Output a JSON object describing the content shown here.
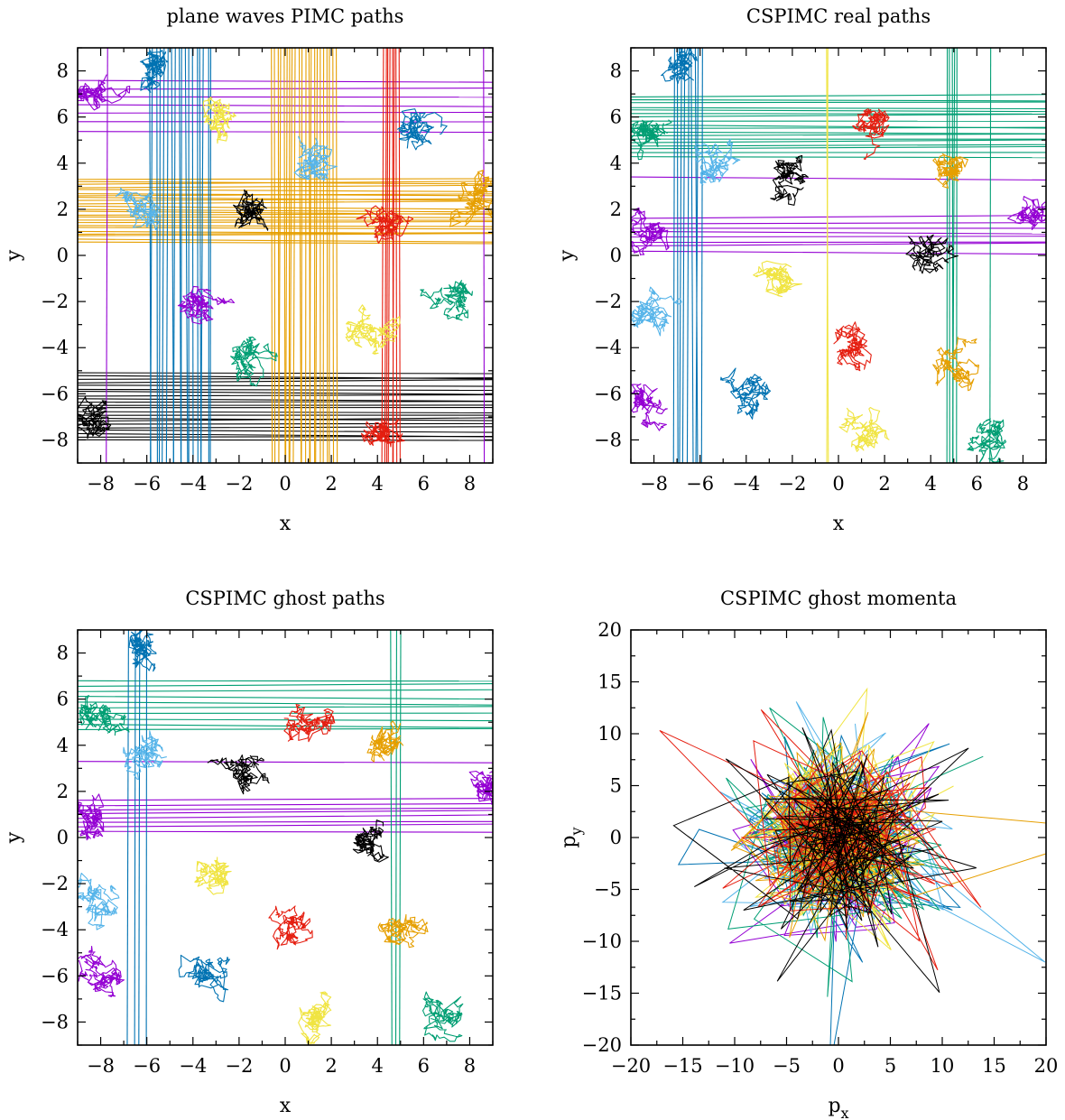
{
  "palette": [
    "#9400d3",
    "#0072b2",
    "#56b4e9",
    "#009e73",
    "#f0e442",
    "#e69f00",
    "#e51e10",
    "#000000"
  ],
  "chart_data": [
    {
      "type": "line",
      "title": "plane waves PIMC paths",
      "xlabel": "x",
      "ylabel": "y",
      "xlim": [
        -9,
        9
      ],
      "ylim": [
        -9,
        9
      ],
      "xticks": [
        "−8",
        "−6",
        "−4",
        "−2",
        "0",
        "2",
        "4",
        "6",
        "8"
      ],
      "yticks": [
        "−8",
        "−6",
        "−4",
        "−2",
        "0",
        "2",
        "4",
        "6",
        "8"
      ],
      "grid": false,
      "seed": 11,
      "clusters": [
        {
          "color": "#0072b2",
          "cx": -5.6,
          "cy": 8.2,
          "r": 1.0
        },
        {
          "color": "#56b4e9",
          "cx": -6.2,
          "cy": 2.2,
          "r": 1.3
        },
        {
          "color": "#56b4e9",
          "cx": 1.0,
          "cy": 4.3,
          "r": 0.9
        },
        {
          "color": "#9400d3",
          "cx": -4.0,
          "cy": -1.8,
          "r": 0.9
        },
        {
          "color": "#9400d3",
          "cx": -8.2,
          "cy": 7.0,
          "r": 0.8
        },
        {
          "color": "#f0e442",
          "cx": -3.0,
          "cy": 5.7,
          "r": 0.8
        },
        {
          "color": "#f0e442",
          "cx": 3.8,
          "cy": -3.4,
          "r": 0.9
        },
        {
          "color": "#009e73",
          "cx": 7.6,
          "cy": -2.1,
          "r": 1.0
        },
        {
          "color": "#009e73",
          "cx": -1.6,
          "cy": -4.6,
          "r": 1.0
        },
        {
          "color": "#000000",
          "cx": -1.5,
          "cy": 1.6,
          "r": 0.9
        },
        {
          "color": "#000000",
          "cx": -8.2,
          "cy": -6.9,
          "r": 0.8
        },
        {
          "color": "#e51e10",
          "cx": 4.3,
          "cy": 1.2,
          "r": 0.9
        },
        {
          "color": "#e51e10",
          "cx": 4.3,
          "cy": -7.7,
          "r": 0.9
        },
        {
          "color": "#e69f00",
          "cx": 8.2,
          "cy": 2.2,
          "r": 0.8
        },
        {
          "color": "#0072b2",
          "cx": 5.7,
          "cy": 5.8,
          "r": 0.9
        }
      ],
      "hlines": [
        {
          "color": "#e69f00",
          "from": 0.6,
          "to": 3.3,
          "n": 24
        },
        {
          "color": "#000000",
          "from": -8.0,
          "to": -5.1,
          "n": 22
        },
        {
          "color": "#9400d3",
          "from": 5.4,
          "to": 7.6,
          "n": 7
        }
      ],
      "vlines": [
        {
          "color": "#e69f00",
          "from": -0.6,
          "to": 2.2,
          "n": 22
        },
        {
          "color": "#0072b2",
          "from": -5.9,
          "to": -3.2,
          "n": 18
        },
        {
          "color": "#e51e10",
          "from": 4.3,
          "to": 4.9,
          "n": 8
        },
        {
          "color": "#9400d3",
          "from": -7.7,
          "to": -7.7,
          "n": 1
        },
        {
          "color": "#9400d3",
          "from": 8.6,
          "to": 8.6,
          "n": 1
        }
      ]
    },
    {
      "type": "line",
      "title": "CSPIMC real paths",
      "xlabel": "x",
      "ylabel": "y",
      "xlim": [
        -9,
        9
      ],
      "ylim": [
        -9,
        9
      ],
      "xticks": [
        "−8",
        "−6",
        "−4",
        "−2",
        "0",
        "2",
        "4",
        "6",
        "8"
      ],
      "yticks": [
        "−8",
        "−6",
        "−4",
        "−2",
        "0",
        "2",
        "4",
        "6",
        "8"
      ],
      "grid": false,
      "seed": 23,
      "clusters": [
        {
          "color": "#0072b2",
          "cx": -6.9,
          "cy": 8.1,
          "r": 1.0
        },
        {
          "color": "#009e73",
          "cx": -8.2,
          "cy": 5.2,
          "r": 0.8
        },
        {
          "color": "#56b4e9",
          "cx": -5.6,
          "cy": 3.5,
          "r": 0.9
        },
        {
          "color": "#000000",
          "cx": -2.2,
          "cy": 3.4,
          "r": 1.0
        },
        {
          "color": "#e51e10",
          "cx": 1.4,
          "cy": 5.5,
          "r": 1.0
        },
        {
          "color": "#e69f00",
          "cx": 4.6,
          "cy": 4.2,
          "r": 1.0
        },
        {
          "color": "#9400d3",
          "cx": -8.4,
          "cy": 1.0,
          "r": 0.7
        },
        {
          "color": "#9400d3",
          "cx": 8.3,
          "cy": 1.8,
          "r": 0.8
        },
        {
          "color": "#000000",
          "cx": 4.0,
          "cy": -0.2,
          "r": 1.2
        },
        {
          "color": "#f0e442",
          "cx": -2.6,
          "cy": -1.0,
          "r": 1.1
        },
        {
          "color": "#56b4e9",
          "cx": -8.0,
          "cy": -2.6,
          "r": 0.9
        },
        {
          "color": "#0072b2",
          "cx": -3.5,
          "cy": -5.7,
          "r": 1.0
        },
        {
          "color": "#e51e10",
          "cx": 0.4,
          "cy": -4.2,
          "r": 1.2
        },
        {
          "color": "#e69f00",
          "cx": 4.8,
          "cy": -4.4,
          "r": 1.2
        },
        {
          "color": "#9400d3",
          "cx": -8.0,
          "cy": -6.3,
          "r": 0.9
        },
        {
          "color": "#f0e442",
          "cx": 1.0,
          "cy": -7.9,
          "r": 1.0
        },
        {
          "color": "#009e73",
          "cx": 6.6,
          "cy": -7.8,
          "r": 1.1
        }
      ],
      "hlines": [
        {
          "color": "#009e73",
          "from": 4.3,
          "to": 6.9,
          "n": 18
        },
        {
          "color": "#9400d3",
          "from": 0.2,
          "to": 1.6,
          "n": 8
        },
        {
          "color": "#9400d3",
          "from": 3.4,
          "to": 3.4,
          "n": 1
        }
      ],
      "vlines": [
        {
          "color": "#0072b2",
          "from": -7.1,
          "to": -5.9,
          "n": 9
        },
        {
          "color": "#009e73",
          "from": 4.7,
          "to": 5.1,
          "n": 5
        },
        {
          "color": "#009e73",
          "from": 6.6,
          "to": 6.6,
          "n": 1
        },
        {
          "color": "#f0e442",
          "from": -0.5,
          "to": -0.5,
          "n": 2
        }
      ]
    },
    {
      "type": "line",
      "title": "CSPIMC ghost paths",
      "xlabel": "x",
      "ylabel": "y",
      "xlim": [
        -9,
        9
      ],
      "ylim": [
        -9,
        9
      ],
      "xticks": [
        "−8",
        "−6",
        "−4",
        "−2",
        "0",
        "2",
        "4",
        "6",
        "8"
      ],
      "yticks": [
        "−8",
        "−6",
        "−4",
        "−2",
        "0",
        "2",
        "4",
        "6",
        "8"
      ],
      "grid": false,
      "seed": 37,
      "clusters": [
        {
          "color": "#0072b2",
          "cx": -6.5,
          "cy": 8.1,
          "r": 1.0
        },
        {
          "color": "#009e73",
          "cx": -8.2,
          "cy": 5.2,
          "r": 0.8
        },
        {
          "color": "#56b4e9",
          "cx": -5.6,
          "cy": 3.5,
          "r": 0.9
        },
        {
          "color": "#000000",
          "cx": -2.2,
          "cy": 3.0,
          "r": 1.0
        },
        {
          "color": "#e51e10",
          "cx": 0.8,
          "cy": 5.2,
          "r": 1.0
        },
        {
          "color": "#e69f00",
          "cx": 4.6,
          "cy": 4.2,
          "r": 1.0
        },
        {
          "color": "#9400d3",
          "cx": -8.4,
          "cy": 1.0,
          "r": 0.7
        },
        {
          "color": "#9400d3",
          "cx": 8.3,
          "cy": 2.0,
          "r": 0.8
        },
        {
          "color": "#000000",
          "cx": 3.8,
          "cy": 0.0,
          "r": 1.2
        },
        {
          "color": "#f0e442",
          "cx": -3.0,
          "cy": -1.3,
          "r": 1.1
        },
        {
          "color": "#56b4e9",
          "cx": -8.0,
          "cy": -2.6,
          "r": 0.9
        },
        {
          "color": "#0072b2",
          "cx": -3.6,
          "cy": -5.6,
          "r": 1.0
        },
        {
          "color": "#e51e10",
          "cx": 0.5,
          "cy": -4.0,
          "r": 1.2
        },
        {
          "color": "#e69f00",
          "cx": 4.8,
          "cy": -4.0,
          "r": 1.2
        },
        {
          "color": "#9400d3",
          "cx": -8.0,
          "cy": -6.2,
          "r": 0.9
        },
        {
          "color": "#f0e442",
          "cx": 1.2,
          "cy": -7.8,
          "r": 1.0
        },
        {
          "color": "#009e73",
          "cx": 6.6,
          "cy": -7.8,
          "r": 1.1
        }
      ],
      "hlines": [
        {
          "color": "#009e73",
          "from": 4.7,
          "to": 6.8,
          "n": 10
        },
        {
          "color": "#9400d3",
          "from": 0.3,
          "to": 1.6,
          "n": 8
        },
        {
          "color": "#9400d3",
          "from": 3.3,
          "to": 3.3,
          "n": 1
        }
      ],
      "vlines": [
        {
          "color": "#0072b2",
          "from": -6.8,
          "to": -6.0,
          "n": 4
        },
        {
          "color": "#009e73",
          "from": 4.6,
          "to": 5.0,
          "n": 3
        }
      ]
    },
    {
      "type": "line",
      "title": "CSPIMC ghost momenta",
      "xlabel": "p",
      "xlabel_sub": "x",
      "ylabel": "p",
      "ylabel_sub": "y",
      "xlim": [
        -20,
        20
      ],
      "ylim": [
        -20,
        20
      ],
      "xticks": [
        "−20",
        "−15",
        "−10",
        "−5",
        "0",
        "5",
        "10",
        "15",
        "20"
      ],
      "yticks": [
        "−20",
        "−15",
        "−10",
        "−5",
        "0",
        "5",
        "10",
        "15",
        "20"
      ],
      "grid": false,
      "seed": 53,
      "series_colors": [
        "#9400d3",
        "#0072b2",
        "#56b4e9",
        "#009e73",
        "#f0e442",
        "#e69f00",
        "#e51e10",
        "#000000"
      ],
      "points_per_series": 150,
      "sigma": 4.0
    }
  ]
}
